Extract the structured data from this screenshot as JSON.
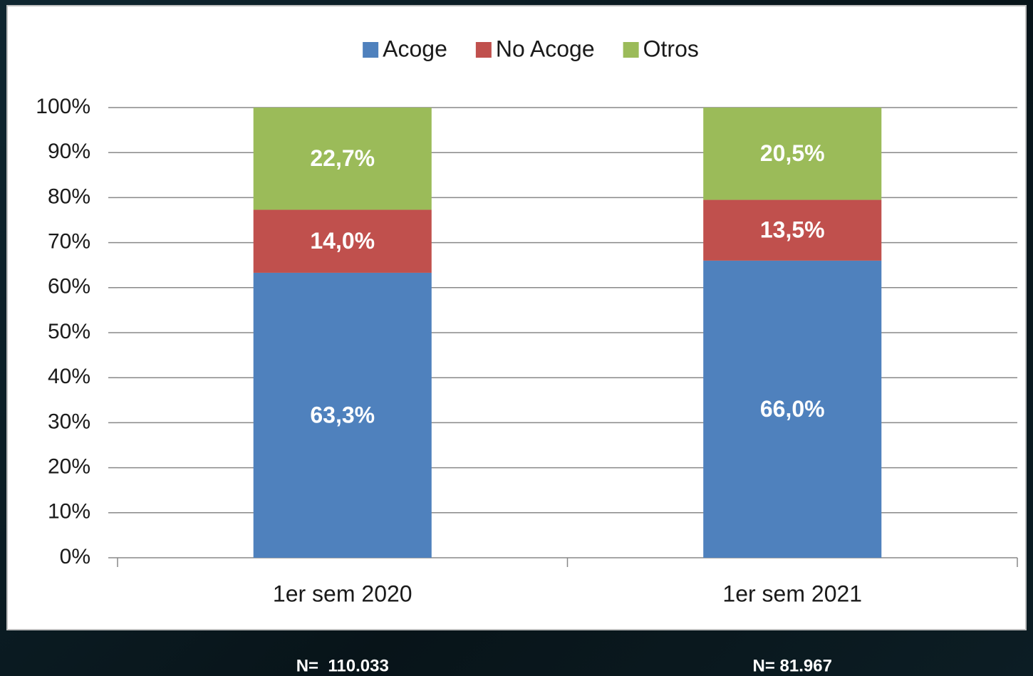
{
  "chart_data": {
    "type": "stacked_bar",
    "categories": [
      "1er sem 2020",
      "1er sem 2021"
    ],
    "series": [
      {
        "name": "Acoge",
        "color": "#4f81bd",
        "values": [
          63.3,
          66.0
        ],
        "value_labels": [
          "63,3%",
          "66,0%"
        ]
      },
      {
        "name": "No Acoge",
        "color": "#c0504d",
        "values": [
          14.0,
          13.5
        ],
        "value_labels": [
          "14,0%",
          "13,5%"
        ]
      },
      {
        "name": "Otros",
        "color": "#9bbb59",
        "values": [
          22.7,
          20.5
        ],
        "value_labels": [
          "22,7%",
          "20,5%"
        ]
      }
    ],
    "ylim": [
      0,
      100
    ],
    "yticks": [
      {
        "value": 0,
        "label": "0%"
      },
      {
        "value": 10,
        "label": "10%"
      },
      {
        "value": 20,
        "label": "20%"
      },
      {
        "value": 30,
        "label": "30%"
      },
      {
        "value": 40,
        "label": "40%"
      },
      {
        "value": 50,
        "label": "50%"
      },
      {
        "value": 60,
        "label": "60%"
      },
      {
        "value": 70,
        "label": "70%"
      },
      {
        "value": 80,
        "label": "80%"
      },
      {
        "value": 90,
        "label": "90%"
      },
      {
        "value": 100,
        "label": "100%"
      }
    ],
    "grid": true,
    "legend": "top",
    "annotations": [
      "N=  110.033",
      "N= 81.967"
    ]
  }
}
